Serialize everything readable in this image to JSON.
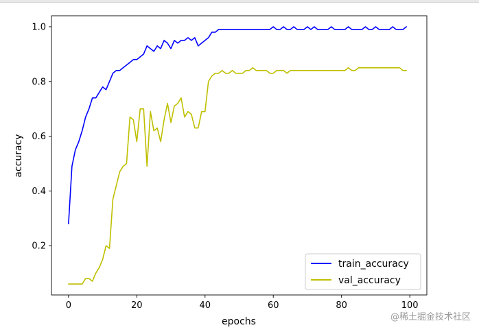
{
  "chart_data": {
    "type": "line",
    "title": "",
    "xlabel": "epochs",
    "ylabel": "accuracy",
    "xlim": [
      -5,
      105
    ],
    "ylim": [
      0.02,
      1.04
    ],
    "xticks": [
      0,
      20,
      40,
      60,
      80,
      100
    ],
    "yticks": [
      0.2,
      0.4,
      0.6,
      0.8,
      1.0
    ],
    "xtick_labels": [
      "0",
      "20",
      "40",
      "60",
      "80",
      "100"
    ],
    "ytick_labels": [
      "0.2",
      "0.4",
      "0.6",
      "0.8",
      "1.0"
    ],
    "grid": false,
    "legend": "lower-right",
    "series": [
      {
        "name": "train_accuracy",
        "color": "#0000ff",
        "x": [
          0,
          1,
          2,
          3,
          4,
          5,
          6,
          7,
          8,
          9,
          10,
          11,
          12,
          13,
          14,
          15,
          16,
          17,
          18,
          19,
          20,
          21,
          22,
          23,
          24,
          25,
          26,
          27,
          28,
          29,
          30,
          31,
          32,
          33,
          34,
          35,
          36,
          37,
          38,
          39,
          40,
          41,
          42,
          43,
          44,
          45,
          46,
          47,
          48,
          49,
          50,
          51,
          52,
          53,
          54,
          55,
          56,
          57,
          58,
          59,
          60,
          61,
          62,
          63,
          64,
          65,
          66,
          67,
          68,
          69,
          70,
          71,
          72,
          73,
          74,
          75,
          76,
          77,
          78,
          79,
          80,
          81,
          82,
          83,
          84,
          85,
          86,
          87,
          88,
          89,
          90,
          91,
          92,
          93,
          94,
          95,
          96,
          97,
          98,
          99
        ],
        "values": [
          0.28,
          0.49,
          0.55,
          0.58,
          0.62,
          0.67,
          0.7,
          0.74,
          0.74,
          0.76,
          0.78,
          0.77,
          0.8,
          0.83,
          0.84,
          0.84,
          0.85,
          0.86,
          0.87,
          0.88,
          0.88,
          0.89,
          0.9,
          0.93,
          0.92,
          0.91,
          0.93,
          0.92,
          0.95,
          0.94,
          0.92,
          0.95,
          0.94,
          0.95,
          0.95,
          0.96,
          0.95,
          0.96,
          0.93,
          0.94,
          0.95,
          0.96,
          0.98,
          0.98,
          0.99,
          0.99,
          0.99,
          0.99,
          0.99,
          0.99,
          0.99,
          0.99,
          0.99,
          0.99,
          0.99,
          0.99,
          0.99,
          0.99,
          0.99,
          0.99,
          1.0,
          0.99,
          0.99,
          1.0,
          0.99,
          0.99,
          1.0,
          0.99,
          0.99,
          0.99,
          1.0,
          0.99,
          1.0,
          0.99,
          0.99,
          0.99,
          0.99,
          1.0,
          0.99,
          0.99,
          0.99,
          0.99,
          1.0,
          0.99,
          0.99,
          0.99,
          0.99,
          1.0,
          0.99,
          0.99,
          1.0,
          0.99,
          0.99,
          0.99,
          0.99,
          1.0,
          0.99,
          0.99,
          0.99,
          1.0
        ]
      },
      {
        "name": "val_accuracy",
        "color": "#bfbf00",
        "x": [
          0,
          1,
          2,
          3,
          4,
          5,
          6,
          7,
          8,
          9,
          10,
          11,
          12,
          13,
          14,
          15,
          16,
          17,
          18,
          19,
          20,
          21,
          22,
          23,
          24,
          25,
          26,
          27,
          28,
          29,
          30,
          31,
          32,
          33,
          34,
          35,
          36,
          37,
          38,
          39,
          40,
          41,
          42,
          43,
          44,
          45,
          46,
          47,
          48,
          49,
          50,
          51,
          52,
          53,
          54,
          55,
          56,
          57,
          58,
          59,
          60,
          61,
          62,
          63,
          64,
          65,
          66,
          67,
          68,
          69,
          70,
          71,
          72,
          73,
          74,
          75,
          76,
          77,
          78,
          79,
          80,
          81,
          82,
          83,
          84,
          85,
          86,
          87,
          88,
          89,
          90,
          91,
          92,
          93,
          94,
          95,
          96,
          97,
          98,
          99
        ],
        "values": [
          0.06,
          0.06,
          0.06,
          0.06,
          0.06,
          0.08,
          0.08,
          0.07,
          0.1,
          0.12,
          0.15,
          0.2,
          0.19,
          0.37,
          0.42,
          0.47,
          0.49,
          0.5,
          0.67,
          0.66,
          0.58,
          0.7,
          0.7,
          0.49,
          0.69,
          0.62,
          0.63,
          0.58,
          0.66,
          0.72,
          0.65,
          0.71,
          0.72,
          0.74,
          0.67,
          0.69,
          0.68,
          0.63,
          0.63,
          0.69,
          0.69,
          0.8,
          0.82,
          0.83,
          0.83,
          0.84,
          0.83,
          0.83,
          0.84,
          0.83,
          0.83,
          0.83,
          0.84,
          0.84,
          0.85,
          0.84,
          0.84,
          0.84,
          0.84,
          0.83,
          0.83,
          0.84,
          0.84,
          0.84,
          0.83,
          0.84,
          0.84,
          0.84,
          0.84,
          0.84,
          0.84,
          0.84,
          0.84,
          0.84,
          0.84,
          0.84,
          0.84,
          0.84,
          0.84,
          0.84,
          0.84,
          0.84,
          0.85,
          0.84,
          0.84,
          0.85,
          0.85,
          0.85,
          0.85,
          0.85,
          0.85,
          0.85,
          0.85,
          0.85,
          0.85,
          0.85,
          0.85,
          0.85,
          0.84,
          0.84
        ]
      }
    ]
  },
  "watermark": "@稀土掘金技术社区"
}
